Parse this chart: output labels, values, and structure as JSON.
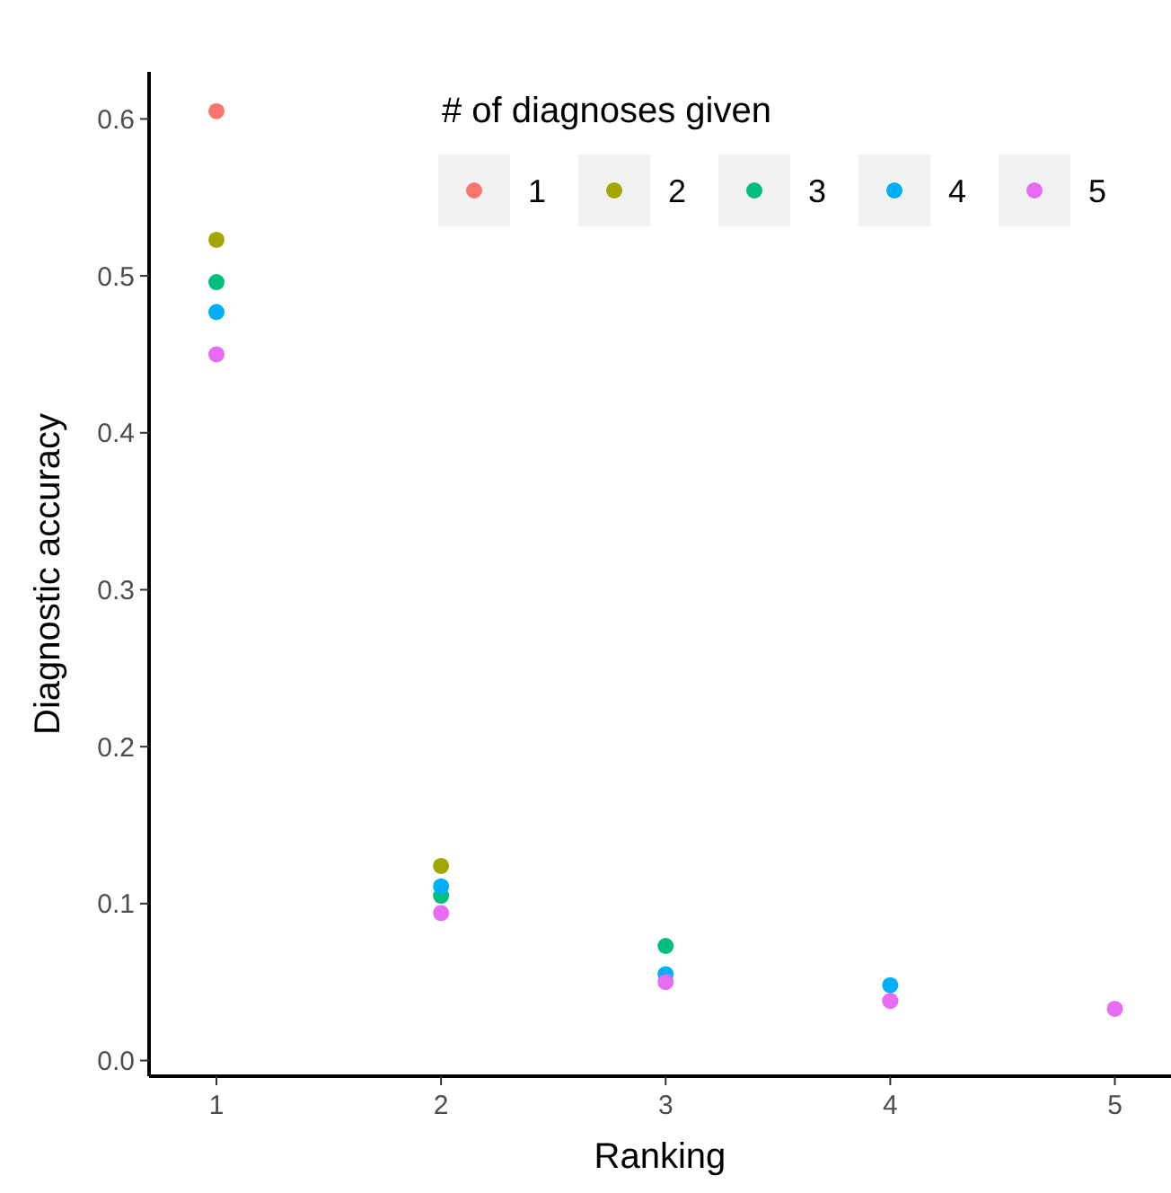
{
  "chart_data": {
    "type": "scatter",
    "xlabel": "Ranking",
    "ylabel": "Diagnostic accuracy",
    "legend_title": "# of diagnoses given",
    "x": [
      1,
      2,
      3,
      4,
      5
    ],
    "xlim": [
      0.7,
      5.25
    ],
    "ylim": [
      -0.01,
      0.63
    ],
    "xticks": [
      1,
      2,
      3,
      4,
      5
    ],
    "yticks": [
      {
        "value": 0,
        "label": "0.0"
      },
      {
        "value": 0.1,
        "label": "0.1"
      },
      {
        "value": 0.2,
        "label": "0.2"
      },
      {
        "value": 0.3,
        "label": "0.3"
      },
      {
        "value": 0.4,
        "label": "0.4"
      },
      {
        "value": 0.5,
        "label": "0.5"
      },
      {
        "value": 0.6,
        "label": "0.6"
      }
    ],
    "grid": false,
    "legend": "top right",
    "marker": "circle",
    "series": [
      {
        "name": "1",
        "color": "#f8766d",
        "values": [
          0.605,
          null,
          null,
          null,
          null
        ]
      },
      {
        "name": "2",
        "color": "#a3a500",
        "values": [
          0.523,
          0.124,
          null,
          null,
          null
        ]
      },
      {
        "name": "3",
        "color": "#00bf7d",
        "values": [
          0.496,
          0.105,
          0.073,
          null,
          null
        ]
      },
      {
        "name": "4",
        "color": "#00b0f6",
        "values": [
          0.477,
          0.111,
          0.055,
          0.048,
          null
        ]
      },
      {
        "name": "5",
        "color": "#e76bf3",
        "values": [
          0.45,
          0.094,
          0.05,
          0.038,
          0.033
        ]
      }
    ]
  }
}
